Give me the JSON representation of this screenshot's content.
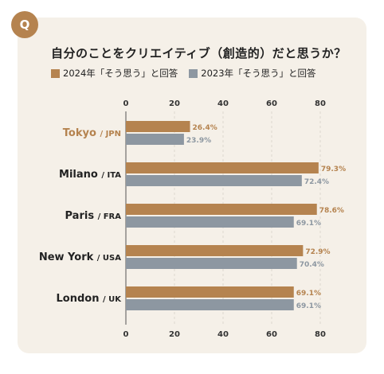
{
  "badge": "Q",
  "question": "自分のことをクリエイティブ（創造的）だと思うか？",
  "legend": [
    {
      "label": "2024年「そう思う」と回答",
      "color": "#b5834f"
    },
    {
      "label": "2023年「そう思う」と回答",
      "color": "#8d97a1"
    }
  ],
  "chart_data": {
    "type": "bar",
    "orientation": "horizontal",
    "xlim": [
      0,
      80
    ],
    "xticks": [
      0,
      20,
      40,
      60,
      80
    ],
    "categories": [
      {
        "city": "Tokyo",
        "code": "/ JPN",
        "highlight": true
      },
      {
        "city": "Milano",
        "code": "/ ITA",
        "highlight": false
      },
      {
        "city": "Paris",
        "code": "/ FRA",
        "highlight": false
      },
      {
        "city": "New York",
        "code": "/ USA",
        "highlight": false
      },
      {
        "city": "London",
        "code": "/ UK",
        "highlight": false
      }
    ],
    "series": [
      {
        "values": [
          26.4,
          79.3,
          78.6,
          72.9,
          69.1
        ],
        "labels": [
          "26.4%",
          "79.3%",
          "78.6%",
          "72.9%",
          "69.1%"
        ],
        "color": "#b5834f"
      },
      {
        "values": [
          23.9,
          72.4,
          69.1,
          70.4,
          69.1
        ],
        "labels": [
          "23.9%",
          "72.4%",
          "69.1%",
          "70.4%",
          "69.1%"
        ],
        "color": "#8d97a1"
      }
    ],
    "highlight_color": "#b5834f",
    "grid": true,
    "legend_position": "top-left"
  }
}
